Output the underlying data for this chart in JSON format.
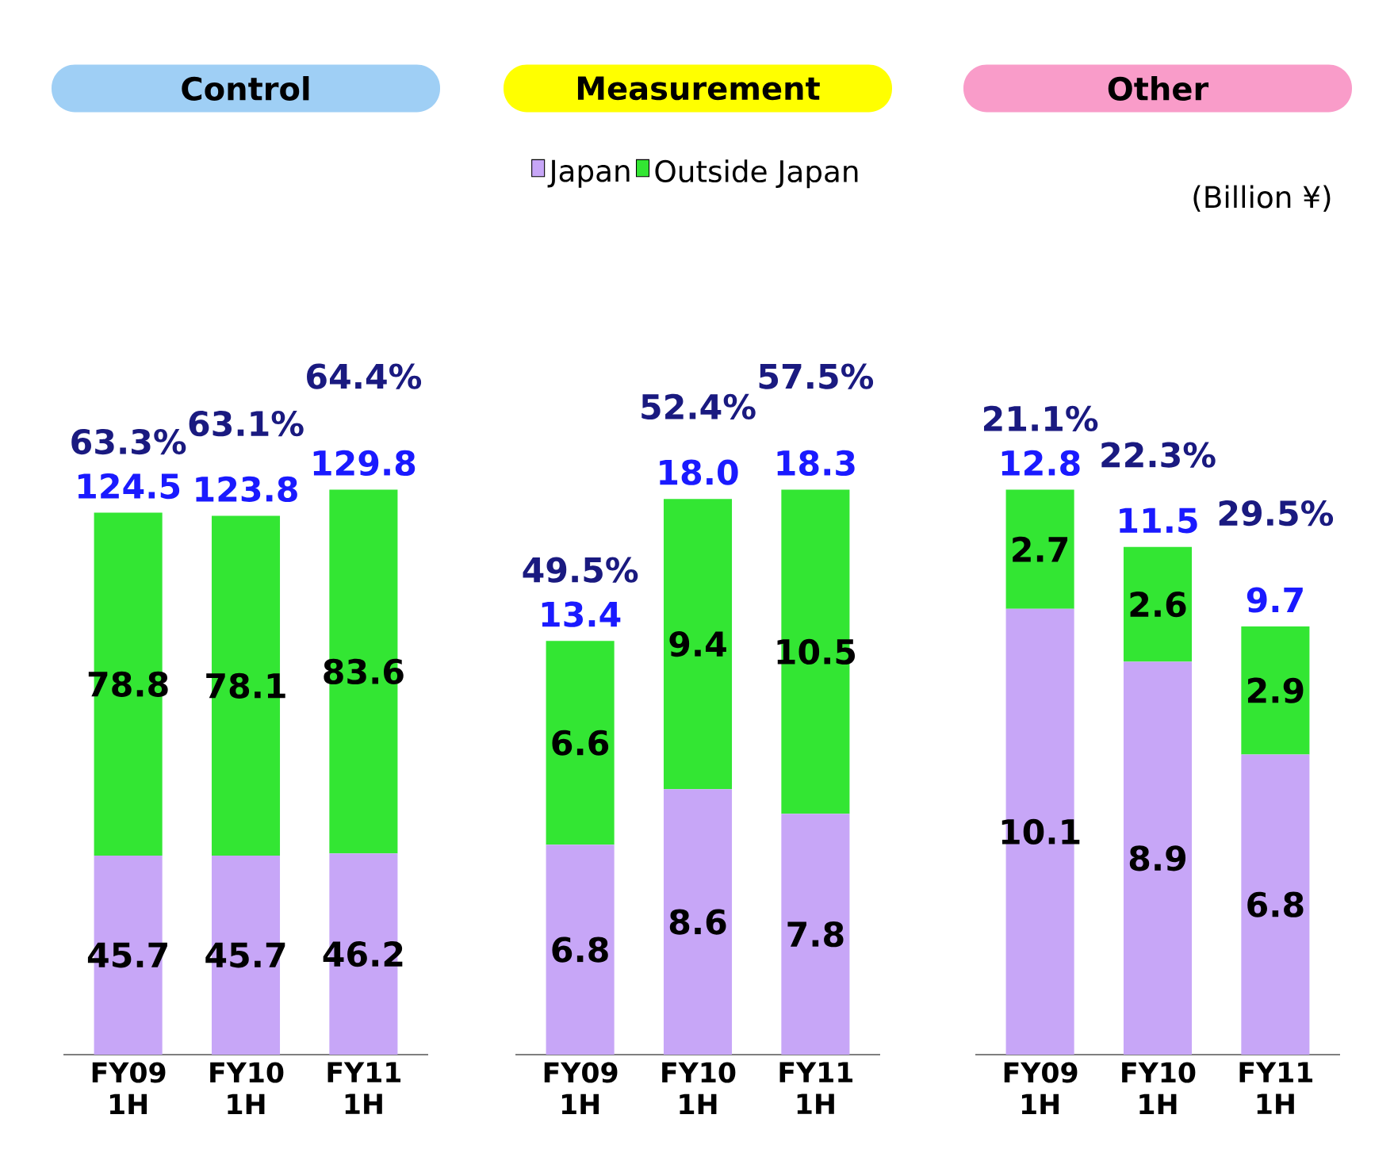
{
  "chart_data": [
    {
      "type": "bar",
      "title": "Control",
      "stacked": true,
      "data_labels": true,
      "categories": [
        "FY09 1H",
        "FY10 1H",
        "FY11 1H"
      ],
      "series": [
        {
          "color": "#c7a6f7",
          "values": [
            45.7,
            45.7,
            46.2
          ]
        },
        {
          "color": "#33e633",
          "values": [
            78.8,
            78.1,
            83.6
          ]
        }
      ],
      "totals": [
        "124.5",
        "123.8",
        "129.8"
      ],
      "annotations": [
        "63.3%",
        "63.1%",
        "64.4%"
      ]
    },
    {
      "type": "bar",
      "title": "Measurement",
      "stacked": true,
      "data_labels": true,
      "legend": "top",
      "categories": [
        "FY09 1H",
        "FY10 1H",
        "FY11 1H"
      ],
      "series": [
        {
          "name": "Japan",
          "color": "#c7a6f7",
          "values": [
            6.8,
            8.6,
            7.8
          ]
        },
        {
          "name": "Outside Japan",
          "color": "#33e633",
          "values": [
            6.6,
            9.4,
            10.5
          ]
        }
      ],
      "totals": [
        "13.4",
        "18.0",
        "18.3"
      ],
      "annotations": [
        "49.5%",
        "52.4%",
        "57.5%"
      ]
    },
    {
      "type": "bar",
      "title": "Other",
      "stacked": true,
      "data_labels": true,
      "categories": [
        "FY09 1H",
        "FY10 1H",
        "FY11 1H"
      ],
      "series": [
        {
          "color": "#c7a6f7",
          "values": [
            10.1,
            8.9,
            6.8
          ]
        },
        {
          "color": "#33e633",
          "values": [
            2.7,
            2.6,
            2.9
          ]
        }
      ],
      "totals": [
        "12.8",
        "11.5",
        "9.7"
      ],
      "annotations": [
        "21.1%",
        "22.3%",
        "29.5%",
        "(Billion ¥)"
      ]
    }
  ]
}
